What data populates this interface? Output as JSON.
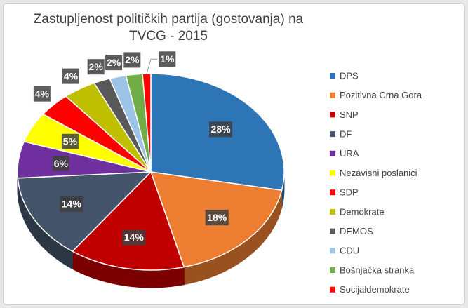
{
  "chart_data": {
    "type": "pie",
    "title": "Zastupljenost političkih partija (gostovanja) na TVCG - 2015",
    "categories": [
      "DPS",
      "Pozitivna Crna Gora",
      "SNP",
      "DF",
      "URA",
      "Nezavisni poslanici",
      "SDP",
      "Demokrate",
      "DEMOS",
      "CDU",
      "Bošnjačka stranka",
      "Socijaldemokrate"
    ],
    "values": [
      28,
      18,
      14,
      14,
      6,
      5,
      4,
      4,
      2,
      2,
      2,
      1
    ],
    "value_labels": [
      "28%",
      "18%",
      "14%",
      "14%",
      "6%",
      "5%",
      "4%",
      "4%",
      "2%",
      "2%",
      "2%",
      "1%"
    ],
    "colors": [
      "#2e75b6",
      "#ed7d31",
      "#c00000",
      "#44546a",
      "#7030a0",
      "#ffff00",
      "#ff0000",
      "#bfbf00",
      "#595959",
      "#9dc3e6",
      "#70ad47",
      "#ff0000"
    ],
    "legend": "right"
  }
}
